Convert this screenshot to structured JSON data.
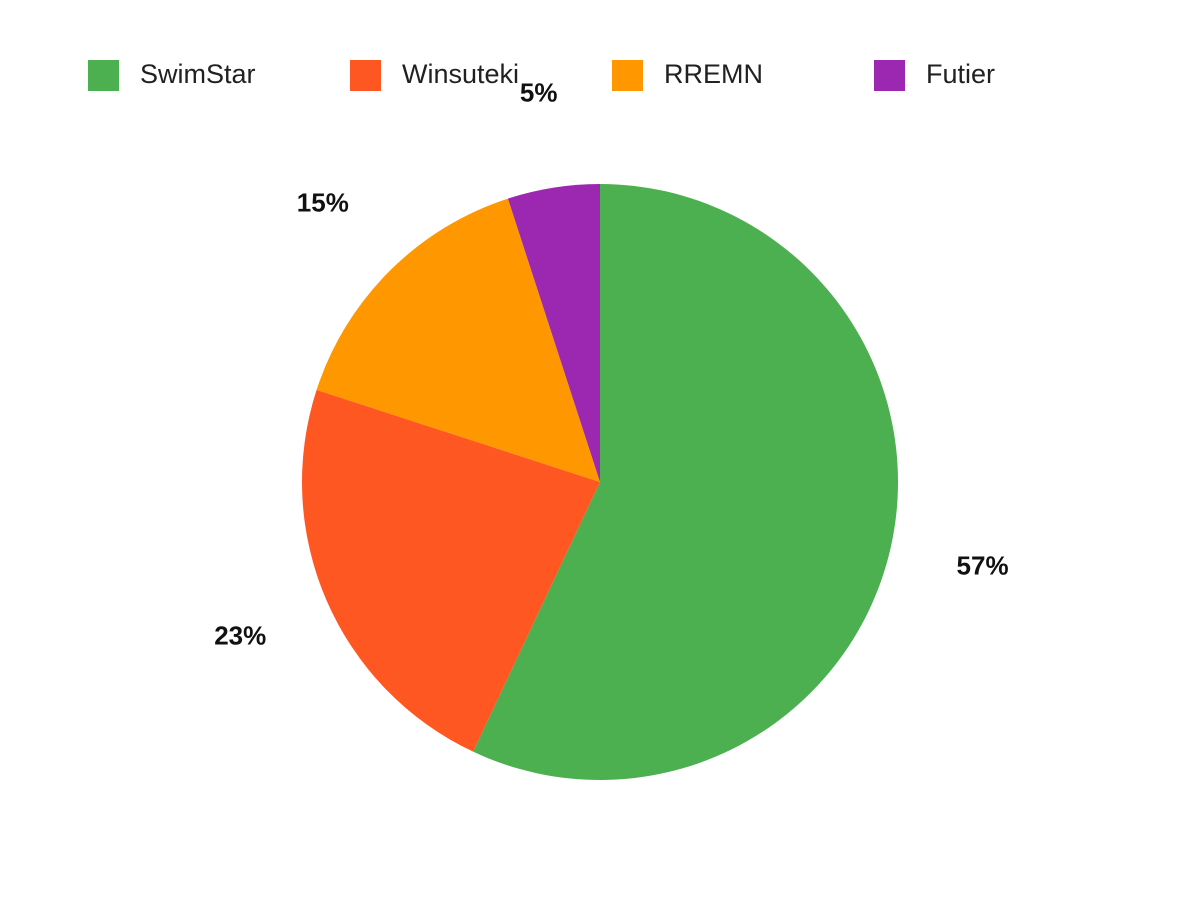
{
  "chart_data": {
    "type": "pie",
    "categories": [
      "SwimStar",
      "Winsuteki",
      "RREMN",
      "Futier"
    ],
    "values": [
      57,
      23,
      15,
      5
    ],
    "value_labels": [
      "57%",
      "23%",
      "15%",
      "5%"
    ],
    "colors": [
      "#4caf50",
      "#ff5722",
      "#ff9800",
      "#9c27b0"
    ],
    "legend": "top"
  }
}
